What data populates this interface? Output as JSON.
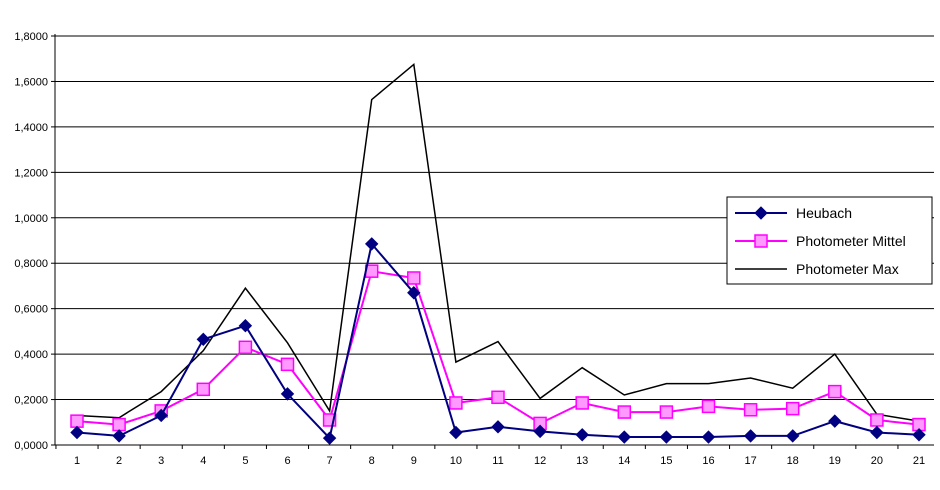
{
  "chart_data": {
    "type": "line",
    "title": "",
    "xlabel": "",
    "ylabel": "",
    "x": [
      1,
      2,
      3,
      4,
      5,
      6,
      7,
      8,
      9,
      10,
      11,
      12,
      13,
      14,
      15,
      16,
      17,
      18,
      19,
      20,
      21
    ],
    "x_tick_labels": [
      "1",
      "2",
      "3",
      "4",
      "5",
      "6",
      "7",
      "8",
      "9",
      "10",
      "11",
      "12",
      "13",
      "14",
      "15",
      "16",
      "17",
      "18",
      "19",
      "20",
      "21"
    ],
    "y_ticks": [
      0,
      0.2,
      0.4,
      0.6,
      0.8,
      1.0,
      1.2,
      1.4,
      1.6,
      1.8
    ],
    "y_tick_labels": [
      "0,0000",
      "0,2000",
      "0,4000",
      "0,6000",
      "0,8000",
      "1,0000",
      "1,2000",
      "1,4000",
      "1,6000",
      "1,8000"
    ],
    "ylim": [
      0,
      1.8
    ],
    "grid": "horizontal",
    "legend_position": "right",
    "series": [
      {
        "name": "Heubach",
        "color": "#000080",
        "marker": "diamond",
        "values": [
          0.055,
          0.04,
          0.13,
          0.465,
          0.525,
          0.225,
          0.03,
          0.885,
          0.67,
          0.055,
          0.08,
          0.06,
          0.045,
          0.035,
          0.035,
          0.035,
          0.04,
          0.04,
          0.105,
          0.055,
          0.045
        ]
      },
      {
        "name": "Photometer Mittel",
        "color": "#ff00ff",
        "marker": "square",
        "values": [
          0.105,
          0.09,
          0.15,
          0.245,
          0.43,
          0.355,
          0.11,
          0.765,
          0.735,
          0.185,
          0.21,
          0.095,
          0.185,
          0.145,
          0.145,
          0.17,
          0.155,
          0.16,
          0.235,
          0.11,
          0.09
        ]
      },
      {
        "name": "Photometer Max",
        "color": "#000000",
        "marker": "none",
        "values": [
          0.13,
          0.12,
          0.235,
          0.415,
          0.69,
          0.45,
          0.15,
          1.52,
          1.675,
          0.365,
          0.455,
          0.205,
          0.34,
          0.22,
          0.27,
          0.27,
          0.295,
          0.25,
          0.4,
          0.135,
          0.105
        ]
      }
    ]
  }
}
